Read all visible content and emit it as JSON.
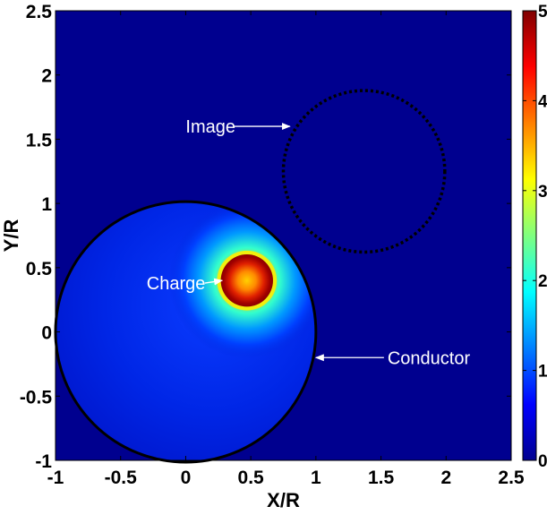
{
  "chart_data": {
    "type": "heatmap",
    "xlabel": "X/R",
    "ylabel": "Y/R",
    "xlim": [
      -1,
      2.5
    ],
    "ylim": [
      -1,
      2.5
    ],
    "x_ticks": [
      "-1",
      "-0.5",
      "0",
      "0.5",
      "1",
      "1.5",
      "2",
      "2.5"
    ],
    "y_ticks": [
      "-1",
      "-0.5",
      "0",
      "0.5",
      "1",
      "1.5",
      "2",
      "2.5"
    ],
    "colorbar": {
      "min": 0,
      "max": 5,
      "ticks": [
        "0",
        "1",
        "2",
        "3",
        "4",
        "5"
      ],
      "colormap": "jet"
    },
    "background_color": "#00008f",
    "conductor": {
      "center": [
        0,
        0
      ],
      "radius": 1,
      "style": "solid",
      "color": "#000000"
    },
    "image_circle": {
      "center": [
        1.37,
        1.25
      ],
      "radius": 0.62,
      "style": "dotted",
      "color": "#000000"
    },
    "charge": {
      "x": 0.47,
      "y": 0.4,
      "peak_value": 5,
      "hot_radius": 0.17,
      "glow_radius": 0.6
    },
    "annotations": [
      {
        "text": "Image",
        "x": 0.0,
        "y": 1.6,
        "arrow_to": [
          0.8,
          1.6
        ]
      },
      {
        "text": "Charge",
        "x": -0.3,
        "y": 0.38,
        "arrow_to": [
          0.28,
          0.4
        ]
      },
      {
        "text": "Conductor",
        "x": 1.55,
        "y": -0.2,
        "arrow_to": [
          1.0,
          -0.2
        ]
      }
    ]
  }
}
